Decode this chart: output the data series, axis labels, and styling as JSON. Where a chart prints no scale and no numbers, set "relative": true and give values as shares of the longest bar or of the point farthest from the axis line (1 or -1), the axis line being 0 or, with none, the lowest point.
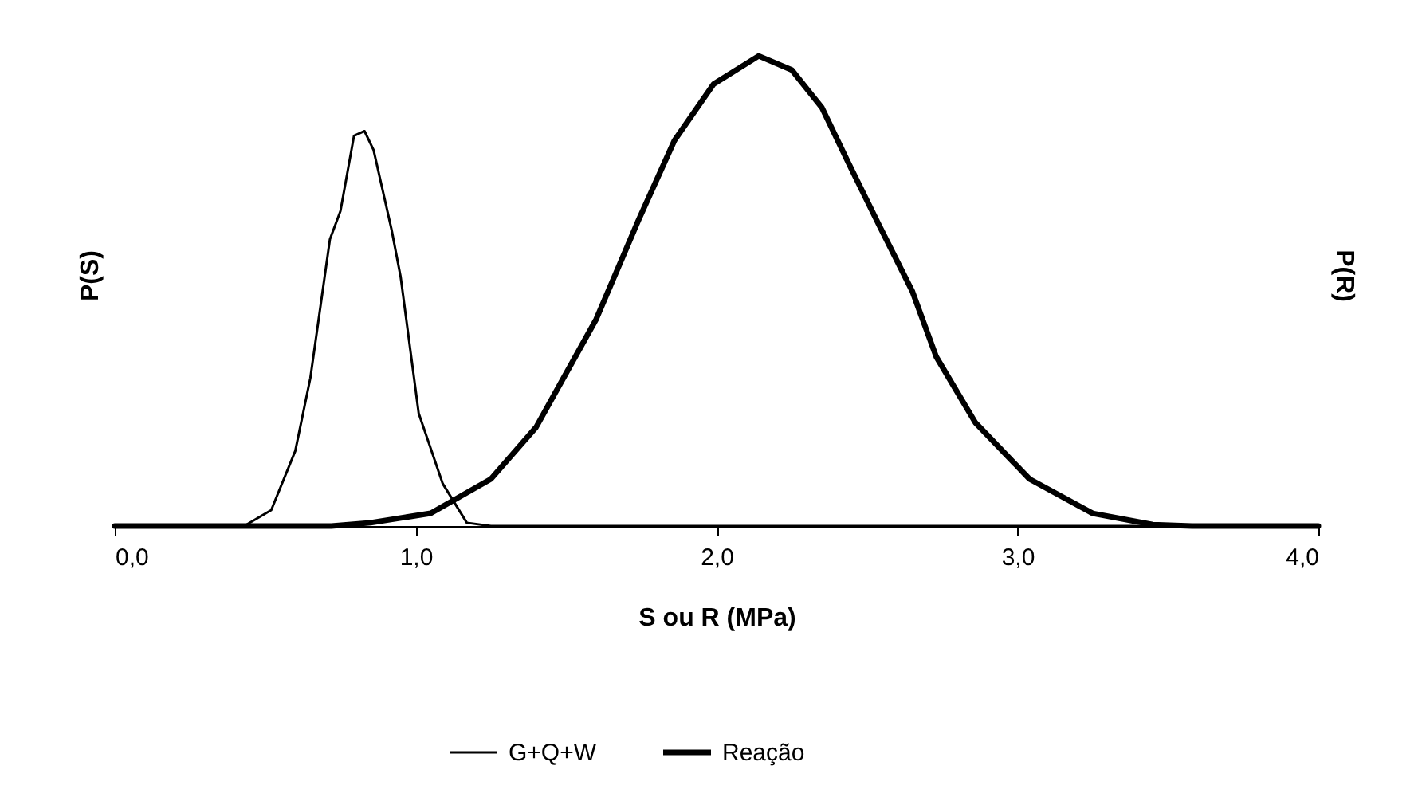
{
  "chart_data": {
    "type": "line",
    "relative": true,
    "xlabel": "S ou R (MPa)",
    "ylabel": "P(S)",
    "y2label": "P(R)",
    "xlim": [
      0,
      4
    ],
    "xticks": [
      {
        "value": 0,
        "label": "0,0"
      },
      {
        "value": 1,
        "label": "1,0"
      },
      {
        "value": 2,
        "label": "2,0"
      },
      {
        "value": 3,
        "label": "3,0"
      },
      {
        "value": 4,
        "label": "4,0"
      }
    ],
    "grid": false,
    "legend": "bottom",
    "marker": "none",
    "series": [
      {
        "name": "G+Q+W",
        "color": "#000000",
        "x": [
          0,
          0.43,
          0.52,
          0.6,
          0.65,
          0.715,
          0.75,
          0.795,
          0.83,
          0.86,
          0.92,
          0.95,
          1.01,
          1.09,
          1.17,
          1.25,
          4
        ],
        "values": [
          0,
          0,
          0.034,
          0.16,
          0.315,
          0.61,
          0.67,
          0.83,
          0.84,
          0.8,
          0.63,
          0.53,
          0.24,
          0.09,
          0.007,
          0,
          0
        ]
      },
      {
        "name": "Reação",
        "color": "#000000",
        "axis": "y2",
        "x": [
          0,
          0.72,
          0.85,
          1.05,
          1.25,
          1.4,
          1.6,
          1.74,
          1.86,
          1.99,
          2.14,
          2.25,
          2.35,
          2.44,
          2.54,
          2.65,
          2.73,
          2.86,
          3.04,
          3.25,
          3.45,
          3.58,
          4
        ],
        "values": [
          0,
          0,
          0.007,
          0.027,
          0.1,
          0.21,
          0.44,
          0.65,
          0.82,
          0.94,
          1,
          0.97,
          0.89,
          0.77,
          0.64,
          0.5,
          0.36,
          0.22,
          0.1,
          0.027,
          0.003,
          0,
          0
        ]
      }
    ]
  }
}
